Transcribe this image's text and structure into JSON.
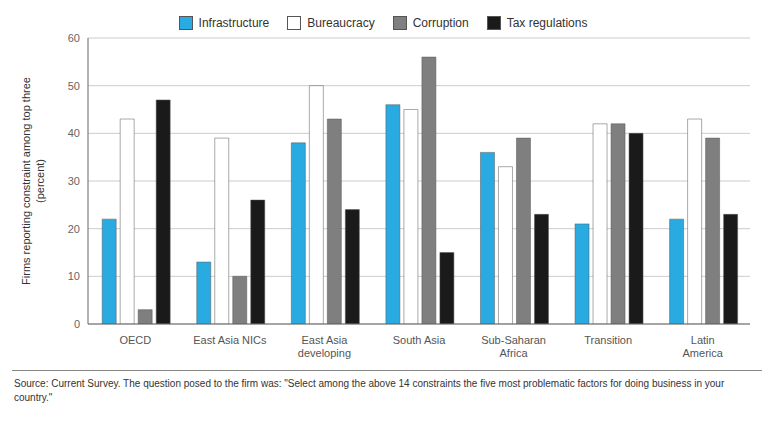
{
  "chart_data": {
    "type": "bar",
    "categories": [
      "OECD",
      "East Asia NICs",
      "East Asia\ndeveloping",
      "South Asia",
      "Sub-Saharan\nAfrica",
      "Transition",
      "Latin\nAmerica"
    ],
    "series": [
      {
        "name": "Infrastructure",
        "color": "#29ABE2",
        "values": [
          22,
          13,
          38,
          46,
          36,
          21,
          22
        ]
      },
      {
        "name": "Bureaucracy",
        "color": "#FFFFFF",
        "values": [
          43,
          39,
          50,
          45,
          33,
          42,
          43
        ]
      },
      {
        "name": "Corruption",
        "color": "#7f7f7f",
        "values": [
          3,
          10,
          43,
          56,
          39,
          42,
          39
        ]
      },
      {
        "name": "Tax regulations",
        "color": "#1a1a1a",
        "values": [
          47,
          26,
          24,
          15,
          23,
          40,
          23
        ]
      }
    ],
    "y_label": "Firms reporting constraint among top three\n(percent)",
    "ylim": [
      0,
      60
    ],
    "yticks": [
      0,
      10,
      20,
      30,
      40,
      50,
      60
    ],
    "grid": true,
    "legend": "top",
    "annotations": [
      "Source: Current Survey. The question posed to the firm was: \"Select among the above 14 constraints the five most problematic factors for doing business in your\ncountry.\""
    ]
  }
}
